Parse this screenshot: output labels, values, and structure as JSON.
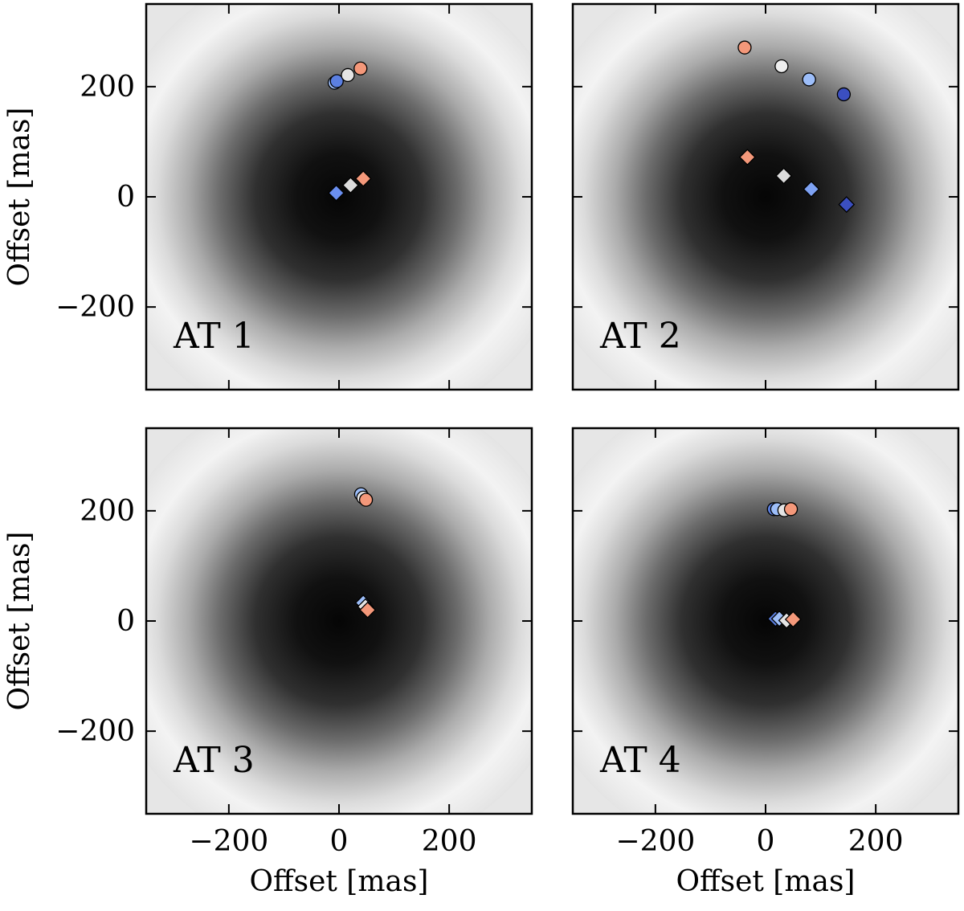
{
  "figure": {
    "xlabel": "Offset [mas]",
    "ylabel": "Offset [mas]"
  },
  "chart_data": {
    "type": "scatter",
    "xlim": [
      -350,
      350
    ],
    "ylim": [
      -350,
      350
    ],
    "ticks": [
      -200,
      0,
      200
    ],
    "tick_labels": [
      "−200",
      "0",
      "200"
    ],
    "xlabel": "Offset [mas]",
    "ylabel": "Offset [mas]",
    "background": "grayscale Airy-like intensity image centred at (0,0), dark core, faint bright ring near the edges",
    "panels": [
      {
        "label": "AT 1",
        "position": "top-left",
        "circles": [
          {
            "x": -8,
            "y": 207,
            "color": "#9dbef9"
          },
          {
            "x": -4,
            "y": 210,
            "color": "#5b7fe0"
          },
          {
            "x": 16,
            "y": 221,
            "color": "#e4e4e4"
          },
          {
            "x": 39,
            "y": 233,
            "color": "#f4987a"
          }
        ],
        "diamonds": [
          {
            "x": -5,
            "y": 7,
            "color": "#6a8ff0"
          },
          {
            "x": 21,
            "y": 21,
            "color": "#dcdcdc"
          },
          {
            "x": 44,
            "y": 33,
            "color": "#f4987a"
          }
        ]
      },
      {
        "label": "AT 2",
        "position": "top-right",
        "circles": [
          {
            "x": -38,
            "y": 271,
            "color": "#f4987a"
          },
          {
            "x": 29,
            "y": 237,
            "color": "#eeeeee"
          },
          {
            "x": 79,
            "y": 213,
            "color": "#9dbef9"
          },
          {
            "x": 142,
            "y": 186,
            "color": "#3b4fc0"
          }
        ],
        "diamonds": [
          {
            "x": -33,
            "y": 72,
            "color": "#f4987a"
          },
          {
            "x": 33,
            "y": 38,
            "color": "#dcdcdc"
          },
          {
            "x": 83,
            "y": 14,
            "color": "#7ea2f3"
          },
          {
            "x": 147,
            "y": -14,
            "color": "#3b4fc0"
          }
        ]
      },
      {
        "label": "AT 3",
        "position": "bottom-left",
        "circles": [
          {
            "x": 40,
            "y": 230,
            "color": "#9dbef9"
          },
          {
            "x": 44,
            "y": 224,
            "color": "#e4e4e4"
          },
          {
            "x": 49,
            "y": 220,
            "color": "#f4987a"
          }
        ],
        "diamonds": [
          {
            "x": 44,
            "y": 33,
            "color": "#9dbef9"
          },
          {
            "x": 48,
            "y": 26,
            "color": "#e4e4e4"
          },
          {
            "x": 52,
            "y": 20,
            "color": "#f4987a"
          }
        ]
      },
      {
        "label": "AT 4",
        "position": "bottom-right",
        "circles": [
          {
            "x": 15,
            "y": 203,
            "color": "#5b7fe0"
          },
          {
            "x": 21,
            "y": 203,
            "color": "#9dbef9"
          },
          {
            "x": 34,
            "y": 201,
            "color": "#e4e4e4"
          },
          {
            "x": 46,
            "y": 203,
            "color": "#f4987a"
          }
        ],
        "diamonds": [
          {
            "x": 18,
            "y": 4,
            "color": "#5b7fe0"
          },
          {
            "x": 25,
            "y": 4,
            "color": "#9dbef9"
          },
          {
            "x": 38,
            "y": 1,
            "color": "#e4e4e4"
          },
          {
            "x": 50,
            "y": 3,
            "color": "#f4987a"
          }
        ]
      }
    ]
  }
}
